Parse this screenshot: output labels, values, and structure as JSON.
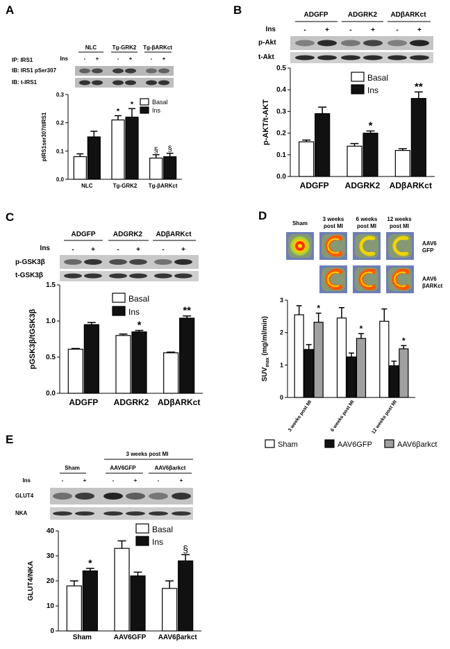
{
  "figure": {
    "panel_letters": [
      "A",
      "B",
      "C",
      "D",
      "E"
    ]
  },
  "panel_a": {
    "letter": "A",
    "groups": [
      "NLC",
      "Tg-GRK2",
      "Tg-βARKct"
    ],
    "ins_label": "Ins",
    "signs": [
      "-",
      "+"
    ],
    "blot_rows": [
      "IP: IRS1",
      "IB: IRS1 pSer307",
      "IB: t-IRS1"
    ]
  },
  "panel_b": {
    "letter": "B",
    "groups": [
      "ADGFP",
      "ADGRK2",
      "ADβARKct"
    ],
    "ins_label": "Ins",
    "signs": [
      "-",
      "+"
    ],
    "blot_rows": [
      "p-Akt",
      "t-Akt"
    ]
  },
  "panel_c": {
    "letter": "C",
    "groups": [
      "ADGFP",
      "ADGRK2",
      "ADβARKct"
    ],
    "ins_label": "Ins",
    "signs": [
      "-",
      "+"
    ],
    "blot_rows": [
      "p-GSK3β",
      "t-GSK3β"
    ]
  },
  "panel_d": {
    "letter": "D",
    "image_cols": [
      "Sham",
      "3 weeks post MI",
      "6 weeks post MI",
      "12 weeks post MI"
    ],
    "image_rows": [
      "AAV6 GFP",
      "AAV6 βARKct"
    ]
  },
  "panel_e": {
    "letter": "E",
    "header": "3 weeks post MI",
    "groups": [
      "Sham",
      "AAV6GFP",
      "AAV6βarkct"
    ],
    "ins_label": "Ins",
    "signs": [
      "-",
      "+"
    ],
    "blot_rows": [
      "GLUT4",
      "NKA"
    ]
  },
  "chart_data": [
    {
      "id": "A",
      "type": "bar",
      "categories": [
        "NLC",
        "Tg-GRK2",
        "Tg-βARKct"
      ],
      "series": [
        {
          "name": "Basal",
          "values": [
            0.08,
            0.21,
            0.075
          ],
          "errors": [
            0.01,
            0.015,
            0.012
          ],
          "color": "#ffffff"
        },
        {
          "name": "Ins",
          "values": [
            0.15,
            0.22,
            0.08
          ],
          "errors": [
            0.02,
            0.03,
            0.012
          ],
          "color": "#111111"
        }
      ],
      "annotations": [
        {
          "category": 1,
          "series": 0,
          "text": "*"
        },
        {
          "category": 1,
          "series": 1,
          "text": "*"
        },
        {
          "category": 2,
          "series": 0,
          "text": "§"
        },
        {
          "category": 2,
          "series": 1,
          "text": "§"
        }
      ],
      "ylabel": "pIRS1ser307/tIRS1",
      "ylim": [
        0,
        0.3
      ],
      "yticks": [
        "0.0",
        "0.1",
        "0.2",
        "0.3"
      ],
      "legend": "top-right"
    },
    {
      "id": "B",
      "type": "bar",
      "categories": [
        "ADGFP",
        "ADGRK2",
        "ADβARKct"
      ],
      "series": [
        {
          "name": "Basal",
          "values": [
            0.16,
            0.14,
            0.12
          ],
          "errors": [
            0.008,
            0.012,
            0.008
          ],
          "color": "#ffffff"
        },
        {
          "name": "Ins",
          "values": [
            0.29,
            0.2,
            0.36
          ],
          "errors": [
            0.03,
            0.01,
            0.03
          ],
          "color": "#111111"
        }
      ],
      "annotations": [
        {
          "category": 1,
          "series": 1,
          "text": "*"
        },
        {
          "category": 2,
          "series": 1,
          "text": "**"
        }
      ],
      "ylabel": "p-AKT/t-AKT",
      "ylim": [
        0,
        0.5
      ],
      "yticks": [
        "0.0",
        "0.1",
        "0.2",
        "0.3",
        "0.4",
        "0.5"
      ],
      "legend": "top-left"
    },
    {
      "id": "C",
      "type": "bar",
      "categories": [
        "ADGFP",
        "ADGRK2",
        "ADβARKct"
      ],
      "series": [
        {
          "name": "Basal",
          "values": [
            0.61,
            0.8,
            0.56
          ],
          "errors": [
            0.01,
            0.02,
            0.01
          ],
          "color": "#ffffff"
        },
        {
          "name": "Ins",
          "values": [
            0.95,
            0.85,
            1.04
          ],
          "errors": [
            0.03,
            0.02,
            0.03
          ],
          "color": "#111111"
        }
      ],
      "annotations": [
        {
          "category": 1,
          "series": 1,
          "text": "*"
        },
        {
          "category": 2,
          "series": 1,
          "text": "**"
        }
      ],
      "ylabel": "pGSK3β/tGSK3β",
      "ylim": [
        0,
        1.5
      ],
      "yticks": [
        "0.0",
        "0.5",
        "1.0",
        "1.5"
      ],
      "legend": "top-left"
    },
    {
      "id": "D",
      "type": "bar",
      "categories": [
        "3 weeks post MI",
        "6 weeks post MI",
        "12 weeks post MI"
      ],
      "series": [
        {
          "name": "Sham",
          "values": [
            2.55,
            2.45,
            2.35
          ],
          "errors": [
            0.28,
            0.32,
            0.38
          ],
          "color": "#ffffff"
        },
        {
          "name": "AAV6GFP",
          "values": [
            1.48,
            1.25,
            0.98
          ],
          "errors": [
            0.15,
            0.12,
            0.14
          ],
          "color": "#111111"
        },
        {
          "name": "AAV6βarkct",
          "values": [
            2.32,
            1.82,
            1.5
          ],
          "errors": [
            0.28,
            0.15,
            0.1
          ],
          "color": "#a0a0a0"
        }
      ],
      "annotations": [
        {
          "category": 0,
          "series": 2,
          "text": "*"
        },
        {
          "category": 1,
          "series": 2,
          "text": "*"
        },
        {
          "category": 2,
          "series": 2,
          "text": "*"
        }
      ],
      "ylabel": "SUVmax (mg/ml/min)",
      "ylim": [
        0,
        3
      ],
      "yticks": [
        "0",
        "1",
        "2",
        "3"
      ],
      "legend": "bottom"
    },
    {
      "id": "E",
      "type": "bar",
      "categories": [
        "Sham",
        "AAV6GFP",
        "AAV6βarkct"
      ],
      "series": [
        {
          "name": "Basal",
          "values": [
            18,
            33,
            17
          ],
          "errors": [
            2,
            3,
            3
          ],
          "color": "#ffffff"
        },
        {
          "name": "Ins",
          "values": [
            24,
            22,
            28
          ],
          "errors": [
            1,
            1.5,
            2.5
          ],
          "color": "#111111"
        }
      ],
      "annotations": [
        {
          "category": 0,
          "series": 1,
          "text": "*"
        },
        {
          "category": 2,
          "series": 1,
          "text": "§"
        }
      ],
      "ylabel": "GLUT4/NKA",
      "ylim": [
        0,
        40
      ],
      "yticks": [
        "0",
        "10",
        "20",
        "30",
        "40"
      ],
      "legend": "top-center"
    }
  ]
}
